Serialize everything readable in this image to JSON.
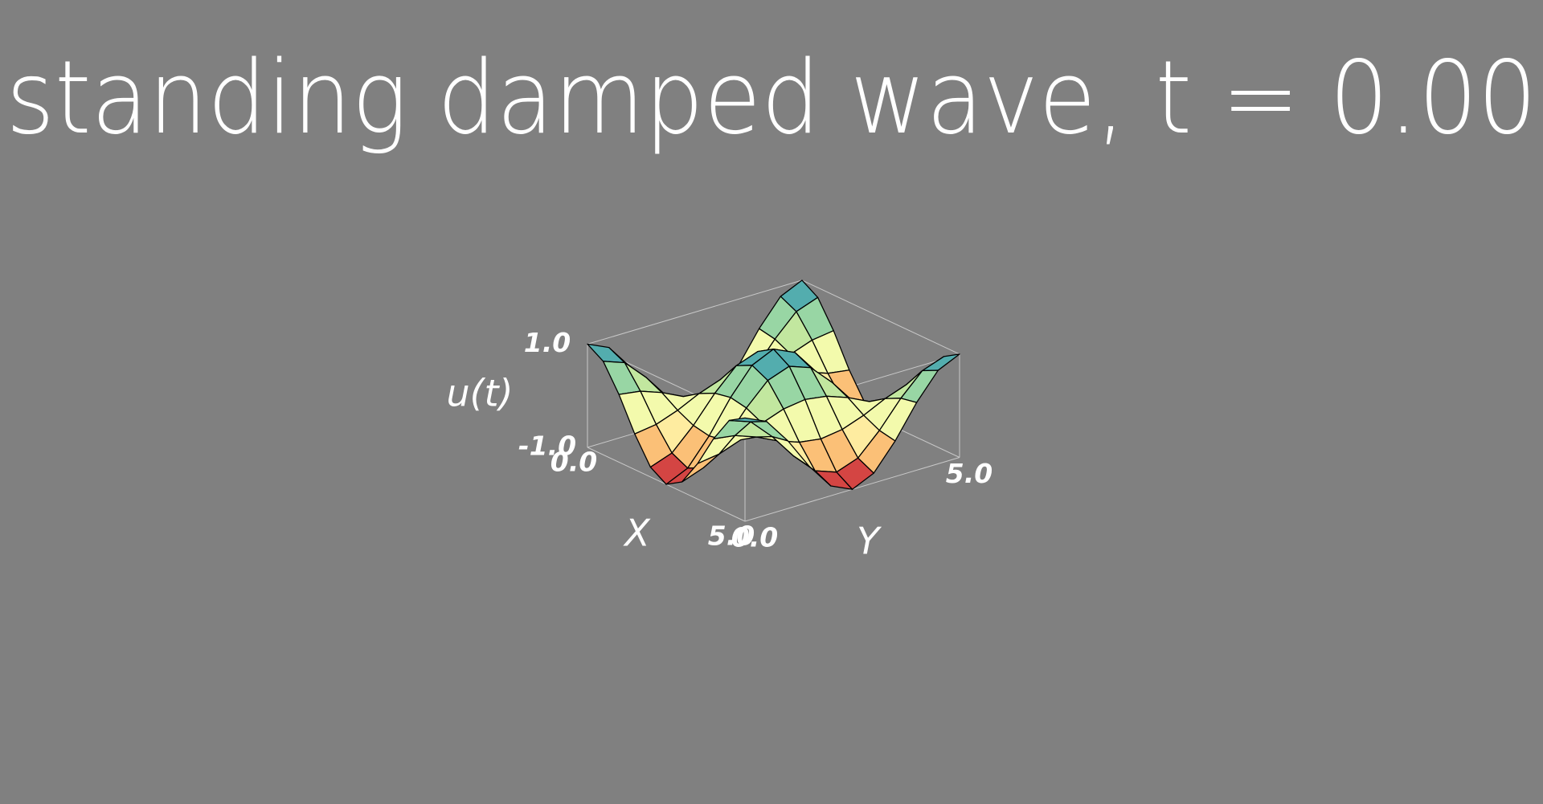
{
  "chart_data": {
    "type": "surface",
    "title": "standing damped wave, t = 0.00",
    "xlabel": "X",
    "ylabel": "Y",
    "zlabel": "u(t)",
    "x": [
      0,
      0.5,
      1,
      1.5,
      2,
      2.5,
      3,
      3.5,
      4,
      4.5,
      5
    ],
    "y": [
      0,
      0.5,
      1,
      1.5,
      2,
      2.5,
      3,
      3.5,
      4,
      4.5,
      5
    ],
    "z": [
      [
        1,
        0.81,
        0.31,
        -0.31,
        -0.81,
        -1,
        -0.81,
        -0.31,
        0.31,
        0.81,
        1
      ],
      [
        0.81,
        0.66,
        0.25,
        -0.25,
        -0.66,
        -0.81,
        -0.66,
        -0.25,
        0.25,
        0.66,
        0.81
      ],
      [
        0.31,
        0.25,
        0.1,
        -0.1,
        -0.25,
        -0.31,
        -0.25,
        -0.1,
        0.1,
        0.25,
        0.31
      ],
      [
        -0.31,
        -0.25,
        -0.1,
        0.1,
        0.25,
        0.31,
        0.25,
        0.1,
        -0.1,
        -0.25,
        -0.31
      ],
      [
        -0.81,
        -0.66,
        -0.25,
        0.25,
        0.66,
        0.81,
        0.66,
        0.25,
        -0.25,
        -0.66,
        -0.81
      ],
      [
        -1,
        -0.81,
        -0.31,
        0.31,
        0.81,
        1,
        0.81,
        0.31,
        -0.31,
        -0.81,
        -1
      ],
      [
        -0.81,
        -0.66,
        -0.25,
        0.25,
        0.66,
        0.81,
        0.66,
        0.25,
        -0.25,
        -0.66,
        -0.81
      ],
      [
        -0.31,
        -0.25,
        -0.1,
        0.1,
        0.25,
        0.31,
        0.25,
        0.1,
        -0.1,
        -0.25,
        -0.31
      ],
      [
        0.31,
        0.25,
        0.1,
        -0.1,
        -0.25,
        -0.31,
        -0.25,
        -0.1,
        0.1,
        0.25,
        0.31
      ],
      [
        0.81,
        0.66,
        0.25,
        -0.25,
        -0.66,
        -0.81,
        -0.66,
        -0.25,
        0.25,
        0.66,
        0.81
      ],
      [
        1,
        0.81,
        0.31,
        -0.31,
        -0.81,
        -1,
        -0.81,
        -0.31,
        0.31,
        0.81,
        1
      ]
    ],
    "xlim": [
      0,
      5
    ],
    "ylim": [
      0,
      5
    ],
    "zlim": [
      -1,
      1
    ],
    "xticks": [
      {
        "value": 0,
        "label": "0.0"
      },
      {
        "value": 5,
        "label": "5.0"
      }
    ],
    "yticks": [
      {
        "value": 0,
        "label": "0.0"
      },
      {
        "value": 5,
        "label": "5.0"
      }
    ],
    "zticks": [
      {
        "value": -1,
        "label": "-1.0"
      },
      {
        "value": 1,
        "label": "1.0"
      }
    ],
    "colormap": [
      "#9e0142",
      "#f46d43",
      "#fee08b",
      "#ffffbf",
      "#e6f598",
      "#abdda4",
      "#66c2a5",
      "#3288bd"
    ]
  }
}
